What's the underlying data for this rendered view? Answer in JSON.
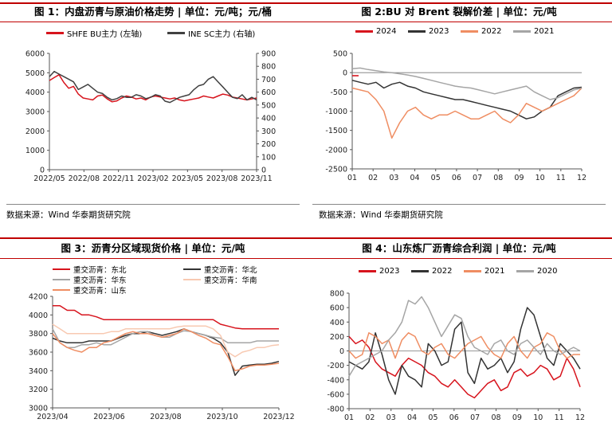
{
  "panels": [
    {
      "title": "图 1：内盘沥青与原油价格走势 | 单位：元/吨；元/桶",
      "source": "数据来源：Wind 华泰期货研究院"
    },
    {
      "title": "图 2:BU 对 Brent 裂解价差 | 单位：元/吨",
      "source": "数据来源：Wind 华泰期货研究院"
    },
    {
      "title": "图 3：沥青分区域现货价格 | 单位：元/吨",
      "source": ""
    },
    {
      "title": "图 4：山东炼厂沥青综合利润 | 单位：元/吨",
      "source": ""
    }
  ],
  "chart_data": [
    {
      "type": "line",
      "title": "图 1：内盘沥青与原油价格走势 | 单位：元/吨；元/桶",
      "x_ticks": [
        "2022/05",
        "2022/08",
        "2022/11",
        "2023/02",
        "2023/05",
        "2023/08",
        "2023/11"
      ],
      "y_left_ticks": [
        "0",
        "1000",
        "2000",
        "3000",
        "4000",
        "5000",
        "6000"
      ],
      "y_left_lim": [
        0,
        6000
      ],
      "y_right_ticks": [
        "0",
        "100",
        "200",
        "300",
        "400",
        "500",
        "600",
        "700",
        "800",
        "900"
      ],
      "y_right_lim": [
        0,
        900
      ],
      "series": [
        {
          "name": "SHFE BU主力 (左轴)",
          "color": "#d7141d",
          "axis": "left",
          "values": [
            4600,
            4750,
            4900,
            4500,
            4200,
            4300,
            3900,
            3700,
            3650,
            3600,
            3800,
            3850,
            3650,
            3500,
            3550,
            3700,
            3800,
            3750,
            3650,
            3700,
            3600,
            3750,
            3800,
            3750,
            3700,
            3650,
            3700,
            3600,
            3550,
            3600,
            3650,
            3700,
            3800,
            3750,
            3700,
            3800,
            3900,
            3850,
            3750,
            3700,
            3650,
            3600,
            3650,
            3700
          ]
        },
        {
          "name": "INE SC主力 (右轴)",
          "color": "#404040",
          "axis": "right",
          "values": [
            720,
            760,
            740,
            720,
            700,
            680,
            620,
            640,
            660,
            630,
            600,
            590,
            560,
            540,
            550,
            570,
            560,
            560,
            580,
            570,
            550,
            560,
            580,
            570,
            530,
            520,
            540,
            560,
            570,
            580,
            620,
            650,
            660,
            700,
            720,
            680,
            640,
            600,
            560,
            550,
            580,
            540,
            560,
            540
          ]
        }
      ]
    },
    {
      "type": "line",
      "title": "图 2:BU 对 Brent 裂解价差 | 单位：元/吨",
      "x_ticks": [
        "01",
        "02",
        "03",
        "04",
        "05",
        "06",
        "07",
        "08",
        "09",
        "10",
        "11",
        "12"
      ],
      "y_ticks": [
        "-2500",
        "-2000",
        "-1500",
        "-1000",
        "-500",
        "0",
        "500"
      ],
      "ylim": [
        -2500,
        500
      ],
      "series": [
        {
          "name": "2024",
          "color": "#d7141d",
          "values": [
            -80
          ]
        },
        {
          "name": "2023",
          "color": "#333333",
          "values": [
            -200,
            -250,
            -300,
            -250,
            -400,
            -300,
            -250,
            -350,
            -400,
            -500,
            -550,
            -600,
            -650,
            -700,
            -700,
            -750,
            -800,
            -850,
            -900,
            -950,
            -1000,
            -1100,
            -1200,
            -1150,
            -1000,
            -900,
            -600,
            -500,
            -400,
            -380
          ]
        },
        {
          "name": "2022",
          "color": "#ef8d62",
          "values": [
            -400,
            -450,
            -500,
            -700,
            -1000,
            -1700,
            -1300,
            -1000,
            -900,
            -1100,
            -1200,
            -1100,
            -1100,
            -1000,
            -1100,
            -1200,
            -1200,
            -1100,
            -1000,
            -1200,
            -1300,
            -1100,
            -800,
            -900,
            -1000,
            -900,
            -800,
            -700,
            -600,
            -400
          ]
        },
        {
          "name": "2021",
          "color": "#a5a5a5",
          "values": [
            100,
            120,
            80,
            50,
            20,
            0,
            -30,
            -60,
            -100,
            -150,
            -200,
            -250,
            -300,
            -350,
            -380,
            -400,
            -450,
            -500,
            -550,
            -500,
            -450,
            -400,
            -350,
            -500,
            -600,
            -700,
            -650,
            -550,
            -450,
            -400
          ]
        }
      ]
    },
    {
      "type": "line",
      "title": "图 3：沥青分区域现货价格 | 单位：元/吨",
      "x_ticks": [
        "2023/04",
        "2023/06",
        "2023/08",
        "2023/10",
        "2023/12"
      ],
      "y_ticks": [
        "3000",
        "3200",
        "3400",
        "3600",
        "3800",
        "4000",
        "4200"
      ],
      "ylim": [
        3000,
        4200
      ],
      "series": [
        {
          "name": "重交沥青：东北",
          "color": "#d7141d",
          "values": [
            4100,
            4100,
            4050,
            4050,
            4000,
            4000,
            3980,
            3950,
            3950,
            3950,
            3950,
            3950,
            3950,
            3950,
            3950,
            3950,
            3950,
            3950,
            3950,
            3950,
            3950,
            3950,
            3950,
            3900,
            3880,
            3860,
            3850,
            3850,
            3850,
            3850,
            3850,
            3850
          ]
        },
        {
          "name": "重交沥青：华北",
          "color": "#333333",
          "values": [
            3750,
            3720,
            3700,
            3700,
            3700,
            3720,
            3720,
            3720,
            3720,
            3750,
            3780,
            3800,
            3800,
            3820,
            3800,
            3780,
            3800,
            3820,
            3850,
            3820,
            3800,
            3780,
            3750,
            3700,
            3600,
            3350,
            3450,
            3460,
            3470,
            3470,
            3480,
            3500
          ]
        },
        {
          "name": "重交沥青：华东",
          "color": "#a5a5a5",
          "values": [
            3850,
            3700,
            3650,
            3650,
            3680,
            3680,
            3700,
            3680,
            3680,
            3720,
            3760,
            3800,
            3820,
            3820,
            3780,
            3760,
            3760,
            3800,
            3830,
            3820,
            3800,
            3780,
            3760,
            3750,
            3700,
            3700,
            3700,
            3700,
            3720,
            3720,
            3720,
            3720
          ]
        },
        {
          "name": "重交沥青：华南",
          "color": "#f8c9b1",
          "values": [
            3900,
            3850,
            3800,
            3800,
            3800,
            3800,
            3800,
            3800,
            3820,
            3820,
            3850,
            3850,
            3850,
            3850,
            3850,
            3850,
            3850,
            3870,
            3880,
            3880,
            3880,
            3880,
            3850,
            3780,
            3600,
            3550,
            3600,
            3620,
            3650,
            3650,
            3670,
            3680
          ]
        },
        {
          "name": "重交沥青：山东",
          "color": "#ef8d62",
          "values": [
            3800,
            3700,
            3650,
            3620,
            3600,
            3650,
            3650,
            3700,
            3720,
            3760,
            3800,
            3820,
            3800,
            3800,
            3780,
            3760,
            3780,
            3800,
            3850,
            3820,
            3780,
            3750,
            3700,
            3680,
            3550,
            3400,
            3420,
            3450,
            3460,
            3460,
            3470,
            3480
          ]
        }
      ]
    },
    {
      "type": "line",
      "title": "图 4：山东炼厂沥青综合利润 | 单位：元/吨",
      "x_ticks": [
        "01",
        "02",
        "03",
        "04",
        "05",
        "06",
        "07",
        "08",
        "09",
        "10",
        "11",
        "12"
      ],
      "y_ticks": [
        "-800",
        "-600",
        "-400",
        "-200",
        "0",
        "200",
        "400",
        "600",
        "800"
      ],
      "ylim": [
        -800,
        800
      ],
      "series": [
        {
          "name": "2023",
          "color": "#d7141d",
          "values": [
            200,
            100,
            150,
            50,
            -150,
            -250,
            -300,
            -350,
            -200,
            -100,
            -150,
            -200,
            -300,
            -350,
            -450,
            -500,
            -400,
            -500,
            -600,
            -650,
            -550,
            -450,
            -400,
            -550,
            -500,
            -300,
            -250,
            -350,
            -300,
            -200,
            -250,
            -400,
            -350,
            -100,
            -250,
            -500
          ]
        },
        {
          "name": "2022",
          "color": "#333333",
          "values": [
            -150,
            -200,
            -250,
            -150,
            250,
            -50,
            -400,
            -600,
            -200,
            -350,
            -400,
            -500,
            100,
            0,
            -200,
            -150,
            300,
            400,
            -300,
            -450,
            -100,
            -250,
            -200,
            -100,
            -300,
            -150,
            300,
            600,
            500,
            200,
            -100,
            -200,
            100,
            0,
            -100,
            -250
          ]
        },
        {
          "name": "2021",
          "color": "#ef8d62",
          "values": [
            0,
            -100,
            -50,
            250,
            200,
            100,
            150,
            -100,
            150,
            250,
            200,
            0,
            -50,
            50,
            100,
            -50,
            -100,
            0,
            100,
            150,
            200,
            50,
            -50,
            -100,
            100,
            200,
            0,
            -100,
            50,
            100,
            250,
            200,
            0,
            -100,
            -50,
            -50
          ]
        },
        {
          "name": "2020",
          "color": "#a5a5a5",
          "values": [
            -350,
            -200,
            -150,
            -100,
            -50,
            0,
            150,
            250,
            400,
            700,
            650,
            750,
            600,
            400,
            200,
            350,
            500,
            450,
            200,
            50,
            0,
            -50,
            100,
            150,
            0,
            -50,
            100,
            150,
            50,
            -50,
            100,
            0,
            -50,
            0,
            50,
            0
          ]
        }
      ]
    }
  ]
}
